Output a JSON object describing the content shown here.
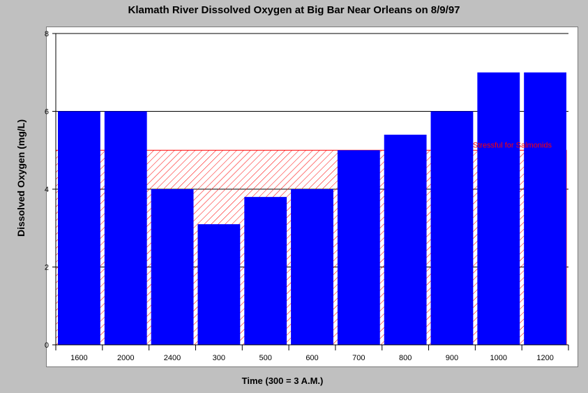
{
  "chart_data": {
    "type": "bar",
    "title": "Klamath River Dissolved Oxygen at Big Bar Near Orleans on 8/9/97",
    "xlabel": "Time (300 = 3 A.M.)",
    "ylabel": "Dissolved Oxygen (mg/L)",
    "categories": [
      "1600",
      "2000",
      "2400",
      "300",
      "500",
      "600",
      "700",
      "800",
      "900",
      "1000",
      "1200"
    ],
    "values": [
      6,
      6,
      4,
      3.1,
      3.8,
      4,
      5,
      5.4,
      6,
      7,
      7
    ],
    "ylim": [
      0,
      8
    ],
    "yticks": [
      0,
      2,
      4,
      6,
      8
    ],
    "grid": "horizontal",
    "bar_color": "#0000ff",
    "threshold": {
      "value": 5,
      "label": "Stressful for Salmonids",
      "color": "#ff0000",
      "fill": "diagonal-hatch"
    }
  }
}
